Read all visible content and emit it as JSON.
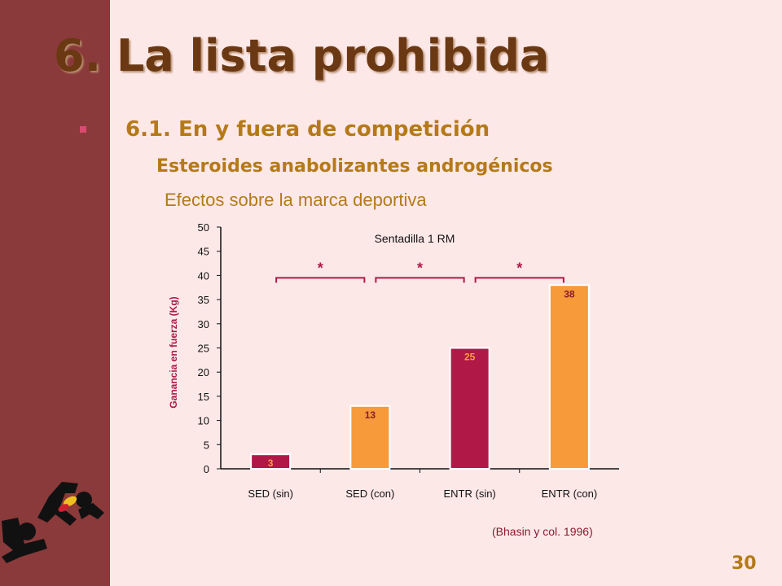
{
  "slide": {
    "title": "6. La lista prohibida",
    "subtitle": "6.1. En y fuera de competición",
    "line2": "Esteroides anabolizantes androgénicos",
    "line3": "Efectos sobre la marca deportiva",
    "citation": "(Bhasin y col. 1996)",
    "page_number": "30"
  },
  "chart_data": {
    "type": "bar",
    "title": "Sentadilla 1 RM",
    "ylabel": "Ganancia en fuerza (Kg)",
    "xlabel": "",
    "ylim": [
      0,
      50
    ],
    "yticks": [
      0,
      5,
      10,
      15,
      20,
      25,
      30,
      35,
      40,
      45,
      50
    ],
    "categories": [
      "SED (sin)",
      "SED (con)",
      "ENTR (sin)",
      "ENTR (con)"
    ],
    "values": [
      3,
      13,
      25,
      38
    ],
    "data_labels": [
      "3",
      "13",
      "25",
      "38"
    ],
    "bar_colors": [
      "#b01848",
      "#f79a3a",
      "#b01848",
      "#f79a3a"
    ],
    "significance": [
      {
        "from": 0,
        "to": 1,
        "label": "*"
      },
      {
        "from": 1,
        "to": 2,
        "label": "*"
      },
      {
        "from": 2,
        "to": 3,
        "label": "*"
      }
    ],
    "grid": false,
    "legend": "none"
  },
  "colors": {
    "background": "#fde8e8",
    "sidebar": "#8a3a3a",
    "title": "#6a3812",
    "accent": "#b57a18",
    "bar_dark": "#b01848",
    "bar_light": "#f79a3a",
    "text_dark_red": "#8b1a2e"
  },
  "icons": {
    "bullet": "square-bullet-icon",
    "logo": "anti-doping-athlete-logo-icon"
  }
}
